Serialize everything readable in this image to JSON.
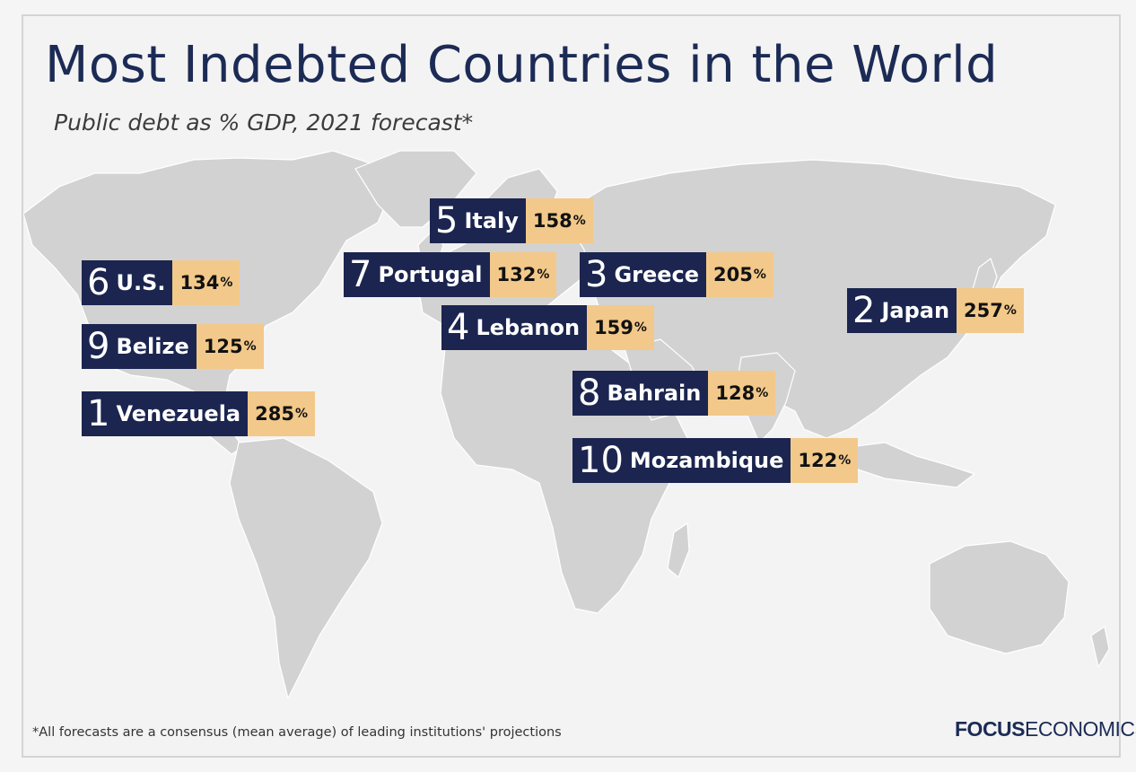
{
  "title": "Most Indebted Countries in the World",
  "subtitle": "Public debt as % GDP, 2021 forecast*",
  "footnote": "*All forecasts are a consensus (mean average) of leading institutions' projections",
  "logo": {
    "bold": "FOCUS",
    "regular": "ECONOMICS"
  },
  "colors": {
    "label_bg": "#1b2550",
    "value_bg": "#f2c98a",
    "land": "#d2d2d2",
    "background": "#f3f3f3",
    "title": "#1c2b55"
  },
  "chart_data": {
    "type": "table",
    "unit": "%",
    "rows": [
      {
        "rank": "1",
        "country": "Venezuela",
        "value": "285"
      },
      {
        "rank": "2",
        "country": "Japan",
        "value": "257"
      },
      {
        "rank": "3",
        "country": "Greece",
        "value": "205"
      },
      {
        "rank": "4",
        "country": "Lebanon",
        "value": "159"
      },
      {
        "rank": "5",
        "country": "Italy",
        "value": "158"
      },
      {
        "rank": "6",
        "country": "U.S.",
        "value": "134"
      },
      {
        "rank": "7",
        "country": "Portugal",
        "value": "132"
      },
      {
        "rank": "8",
        "country": "Bahrain",
        "value": "128"
      },
      {
        "rank": "9",
        "country": "Belize",
        "value": "125"
      },
      {
        "rank": "10",
        "country": "Mozambique",
        "value": "122"
      }
    ]
  }
}
